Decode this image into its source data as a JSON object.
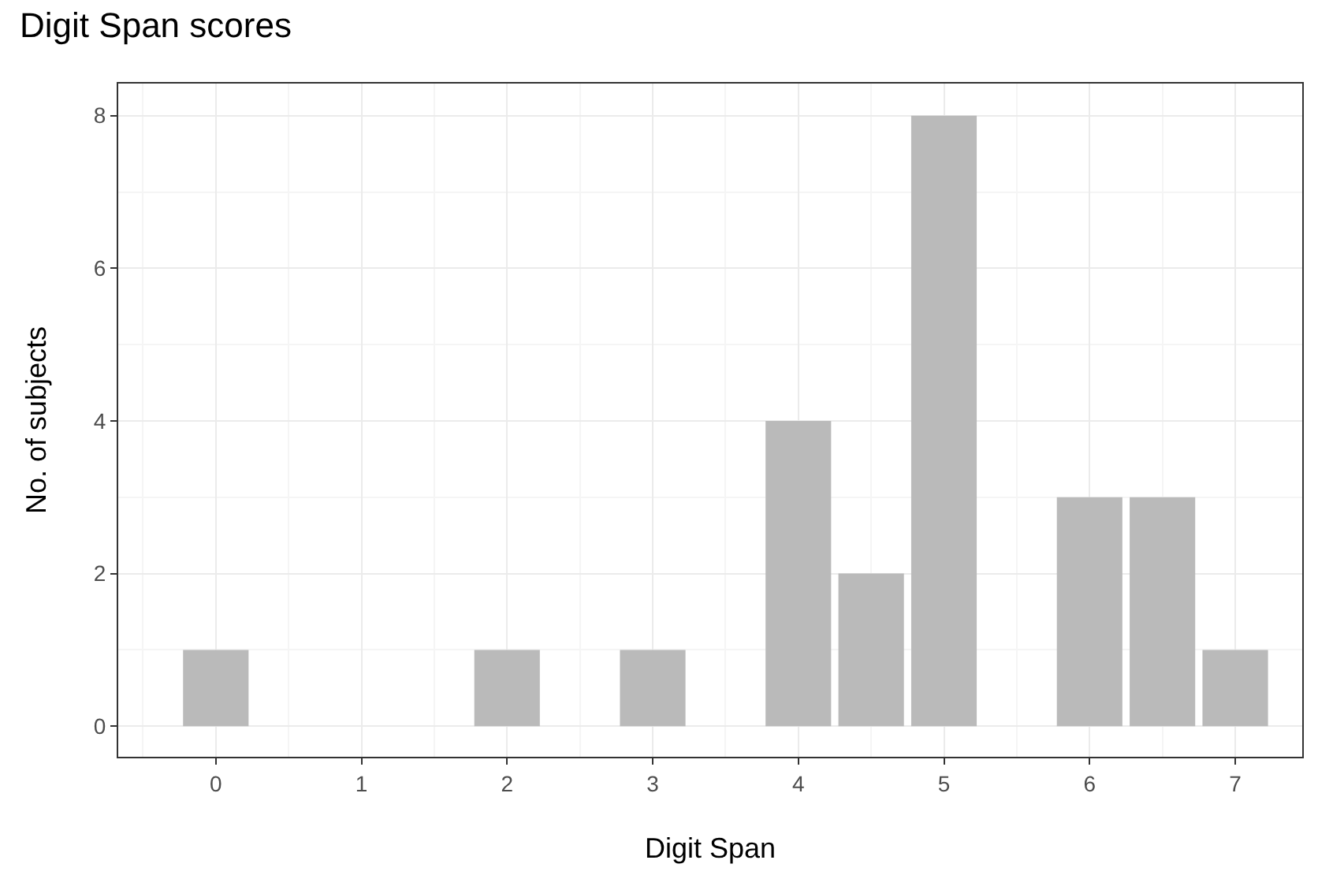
{
  "chart_data": {
    "type": "bar",
    "title": "Digit Span scores",
    "xlabel": "Digit Span",
    "ylabel": "No. of subjects",
    "x": [
      0,
      2,
      3,
      4,
      4.5,
      5,
      6,
      6.5,
      7
    ],
    "values": [
      1,
      1,
      1,
      4,
      2,
      8,
      3,
      3,
      1
    ],
    "color": "#bababa",
    "xlim": [
      -0.67,
      7.46
    ],
    "xticks": [
      0,
      1,
      2,
      3,
      4,
      5,
      6,
      7
    ],
    "ylim": [
      -0.4,
      8.42
    ],
    "yticks": [
      0,
      2,
      4,
      6,
      8
    ],
    "grid": true
  }
}
